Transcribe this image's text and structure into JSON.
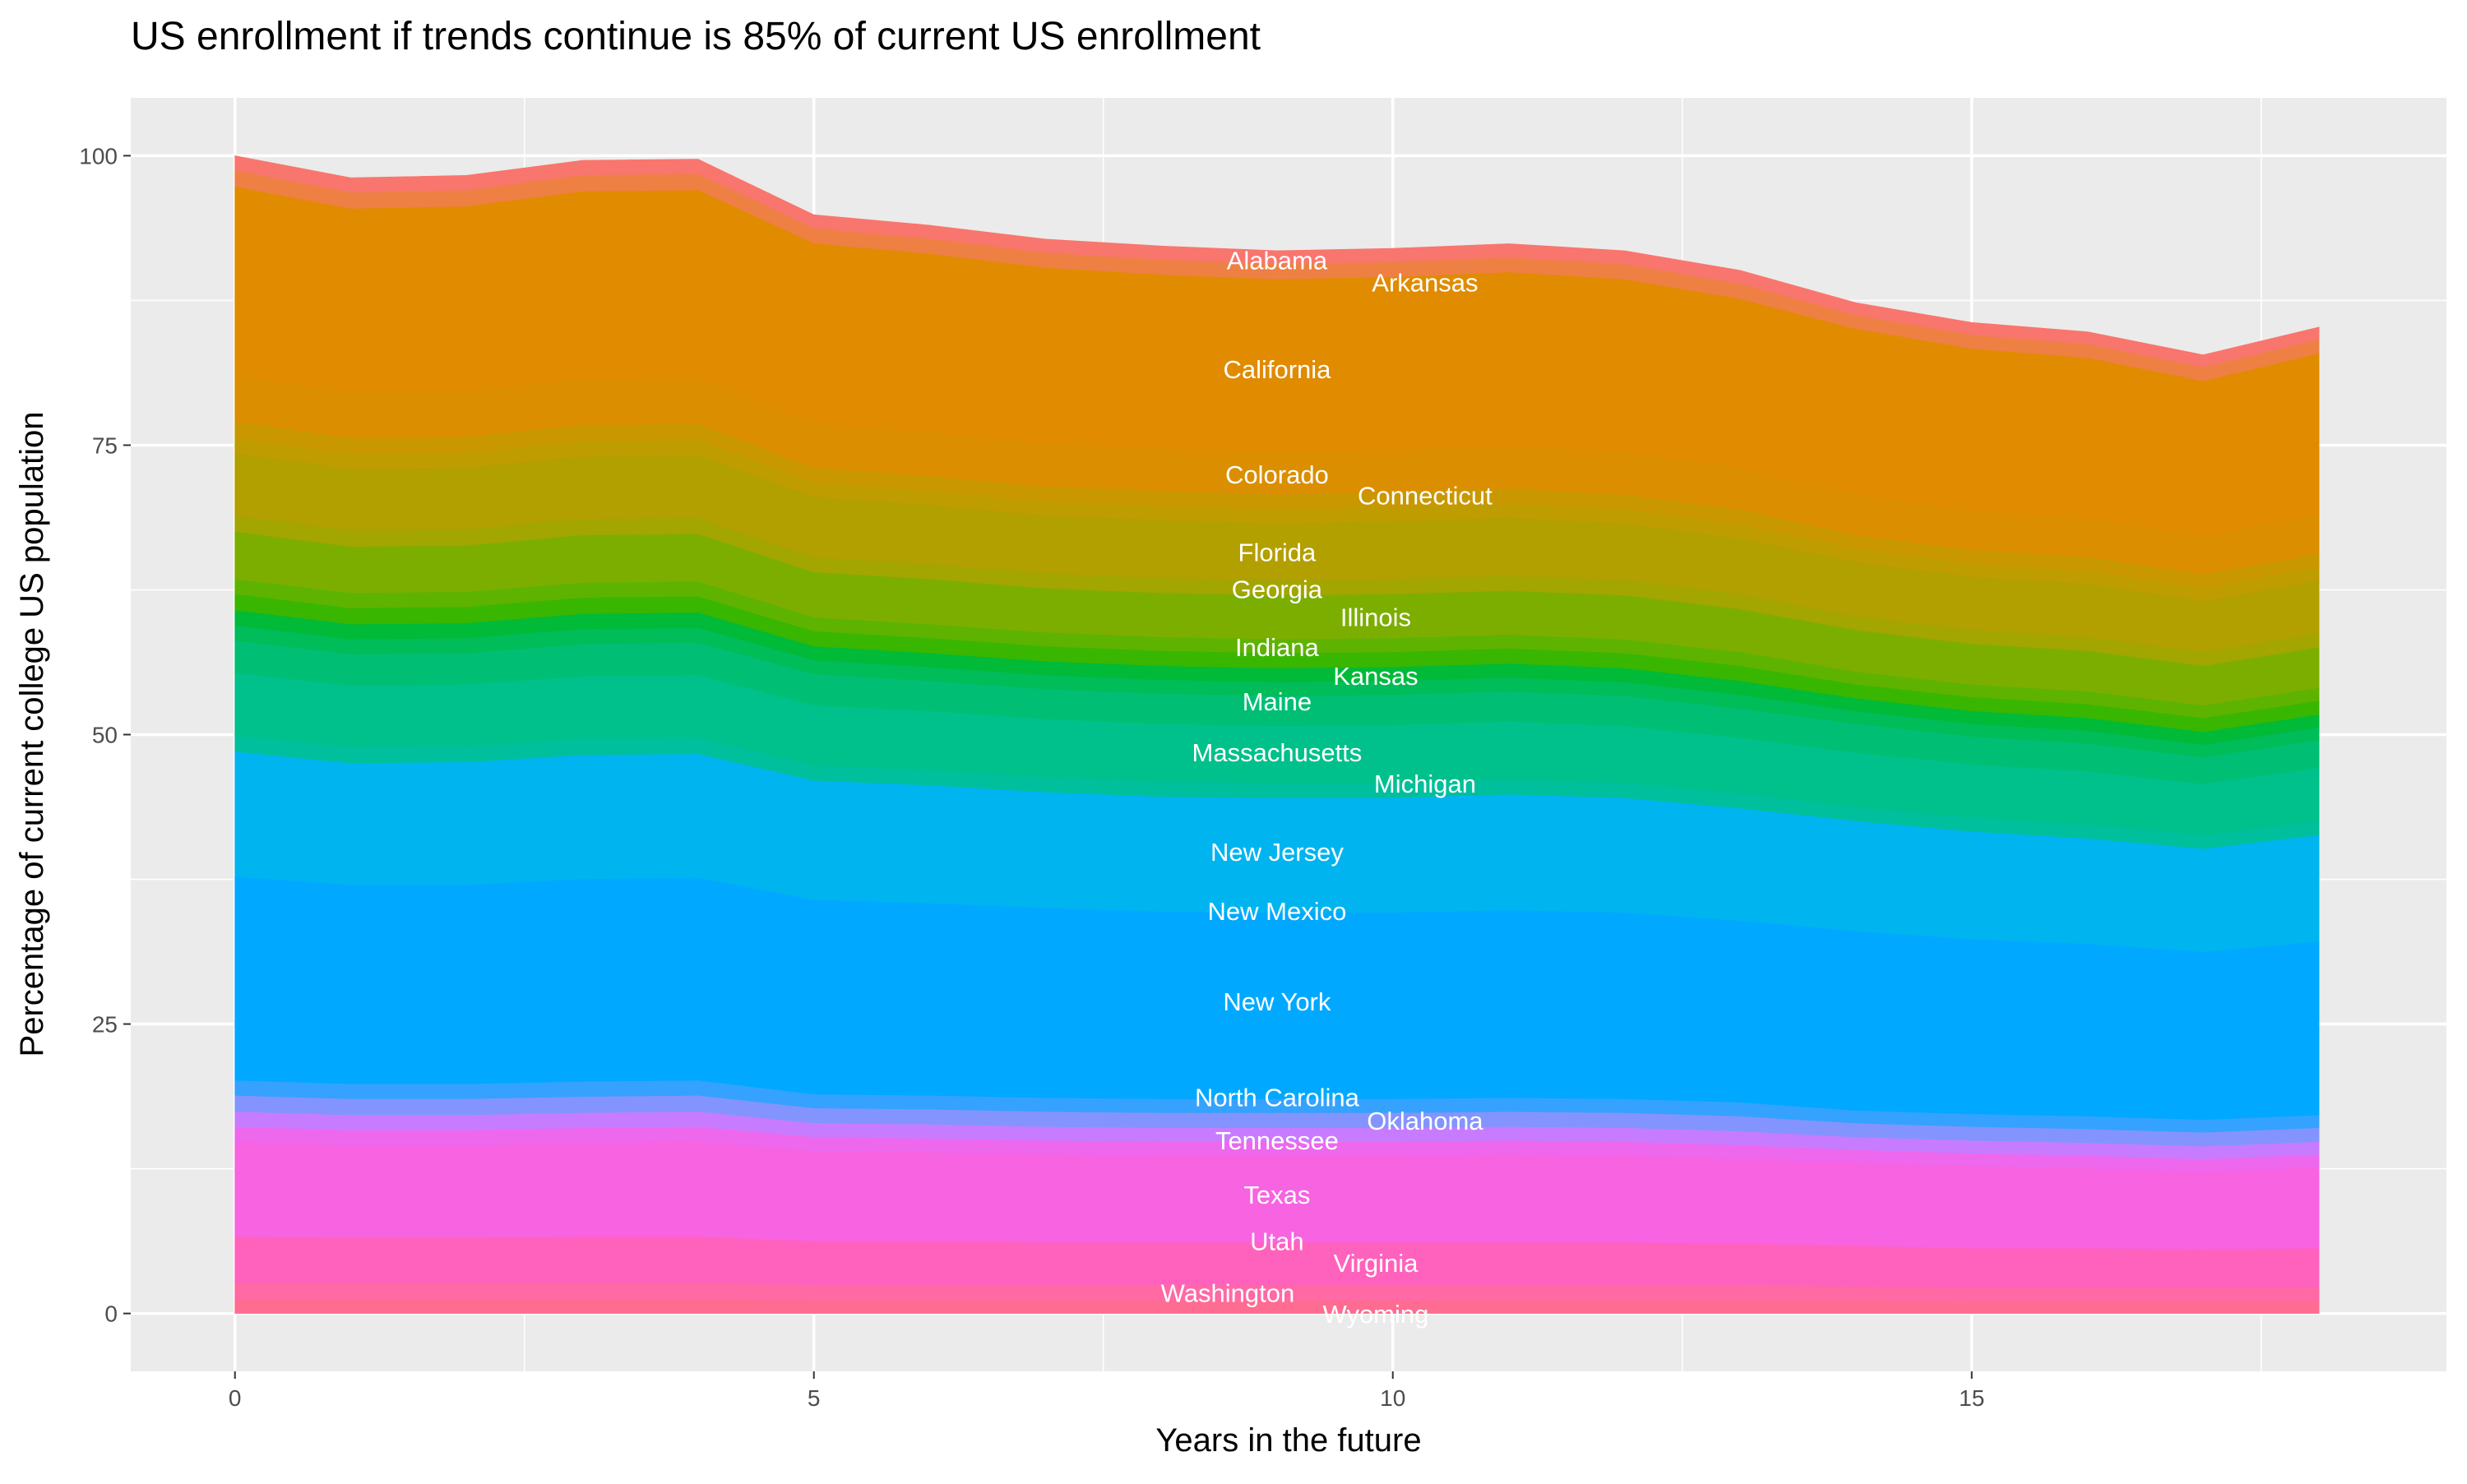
{
  "chart_data": {
    "type": "area",
    "stacked": true,
    "title": "US enrollment if trends continue is 85% of current US enrollment",
    "xlabel": "Years in the future",
    "ylabel": "Percentage of current college US population",
    "xlim": [
      -0.9,
      19.1
    ],
    "ylim": [
      -5,
      105
    ],
    "x_ticks": [
      0,
      5,
      10,
      15
    ],
    "y_ticks": [
      0,
      25,
      50,
      75,
      100
    ],
    "grid": true,
    "panel_background": "#EBEBEB",
    "x": [
      0,
      1,
      2,
      3,
      4,
      5,
      6,
      7,
      8,
      9,
      10,
      11,
      12,
      13,
      14,
      15,
      16,
      17,
      18
    ],
    "series": [
      {
        "color": "#F8766D",
        "values": [
          1.3,
          1.3,
          1.3,
          1.3,
          1.3,
          1.2,
          1.2,
          1.2,
          1.2,
          1.2,
          1.2,
          1.2,
          1.2,
          1.2,
          1.1,
          1.1,
          1.1,
          1.1,
          1.1
        ]
      },
      {
        "color": "#EE8044",
        "values": [
          1.4,
          1.4,
          1.4,
          1.4,
          1.4,
          1.3,
          1.3,
          1.3,
          1.3,
          1.3,
          1.3,
          1.3,
          1.3,
          1.3,
          1.2,
          1.2,
          1.2,
          1.2,
          1.2
        ]
      },
      {
        "color": "#E08B00",
        "values": [
          16.3,
          15.9,
          16.0,
          16.2,
          16.2,
          15.6,
          15.4,
          15.2,
          15.0,
          14.9,
          14.9,
          15.0,
          14.9,
          14.6,
          14.3,
          14.0,
          13.8,
          13.4,
          13.9
        ]
      },
      {
        "color": "#DB8E00",
        "values": [
          4.0,
          3.9,
          3.9,
          4.0,
          4.0,
          3.8,
          3.8,
          3.7,
          3.7,
          3.7,
          3.7,
          3.7,
          3.7,
          3.6,
          3.5,
          3.4,
          3.4,
          3.3,
          3.4
        ]
      },
      {
        "color": "#C99800",
        "values": [
          1.4,
          1.4,
          1.4,
          1.4,
          1.4,
          1.3,
          1.3,
          1.3,
          1.3,
          1.3,
          1.3,
          1.3,
          1.3,
          1.3,
          1.2,
          1.2,
          1.2,
          1.2,
          1.2
        ]
      },
      {
        "color": "#BF9C00",
        "values": [
          1.3,
          1.3,
          1.3,
          1.3,
          1.3,
          1.2,
          1.2,
          1.2,
          1.2,
          1.2,
          1.2,
          1.2,
          1.2,
          1.2,
          1.1,
          1.1,
          1.1,
          1.1,
          1.1
        ]
      },
      {
        "color": "#B29F00",
        "values": [
          5.4,
          5.3,
          5.3,
          5.4,
          5.4,
          5.2,
          5.1,
          5.0,
          5.0,
          4.9,
          5.0,
          5.0,
          4.9,
          4.8,
          4.7,
          4.6,
          4.6,
          4.4,
          4.6
        ]
      },
      {
        "color": "#A3A500",
        "values": [
          1.4,
          1.4,
          1.4,
          1.4,
          1.4,
          1.3,
          1.3,
          1.3,
          1.3,
          1.3,
          1.3,
          1.3,
          1.3,
          1.3,
          1.2,
          1.2,
          1.2,
          1.2,
          1.2
        ]
      },
      {
        "color": "#7CAE00",
        "values": [
          4.1,
          4.0,
          4.0,
          4.1,
          4.1,
          3.9,
          3.9,
          3.8,
          3.8,
          3.8,
          3.8,
          3.8,
          3.8,
          3.7,
          3.6,
          3.5,
          3.5,
          3.4,
          3.5
        ]
      },
      {
        "color": "#5EB300",
        "values": [
          1.3,
          1.3,
          1.3,
          1.3,
          1.3,
          1.2,
          1.2,
          1.2,
          1.2,
          1.2,
          1.2,
          1.2,
          1.2,
          1.2,
          1.1,
          1.1,
          1.1,
          1.1,
          1.1
        ]
      },
      {
        "color": "#39B600",
        "values": [
          1.4,
          1.4,
          1.4,
          1.4,
          1.4,
          1.3,
          1.3,
          1.3,
          1.3,
          1.3,
          1.3,
          1.3,
          1.3,
          1.3,
          1.2,
          1.2,
          1.2,
          1.2,
          1.2
        ]
      },
      {
        "color": "#00BA38",
        "values": [
          1.3,
          1.3,
          1.3,
          1.3,
          1.3,
          1.2,
          1.2,
          1.2,
          1.2,
          1.2,
          1.2,
          1.2,
          1.2,
          1.2,
          1.1,
          1.1,
          1.1,
          1.1,
          1.1
        ]
      },
      {
        "color": "#00BC59",
        "values": [
          1.3,
          1.3,
          1.3,
          1.3,
          1.3,
          1.2,
          1.2,
          1.2,
          1.2,
          1.2,
          1.2,
          1.2,
          1.2,
          1.2,
          1.1,
          1.1,
          1.1,
          1.1,
          1.1
        ]
      },
      {
        "color": "#00BF74",
        "values": [
          2.8,
          2.7,
          2.7,
          2.8,
          2.8,
          2.7,
          2.6,
          2.6,
          2.6,
          2.6,
          2.6,
          2.6,
          2.6,
          2.5,
          2.5,
          2.4,
          2.4,
          2.3,
          2.4
        ]
      },
      {
        "color": "#00C08B",
        "values": [
          5.4,
          5.3,
          5.3,
          5.4,
          5.4,
          5.2,
          5.1,
          5.0,
          5.0,
          4.9,
          5.0,
          5.0,
          4.9,
          4.8,
          4.7,
          4.6,
          4.6,
          4.4,
          4.6
        ]
      },
      {
        "color": "#00BF9C",
        "values": [
          1.4,
          1.4,
          1.4,
          1.4,
          1.4,
          1.3,
          1.3,
          1.3,
          1.3,
          1.3,
          1.3,
          1.3,
          1.3,
          1.3,
          1.2,
          1.2,
          1.2,
          1.2,
          1.2
        ]
      },
      {
        "color": "#00B4F0",
        "values": [
          10.8,
          10.5,
          10.6,
          10.7,
          10.7,
          10.3,
          10.2,
          10.0,
          9.9,
          9.9,
          9.9,
          10.0,
          9.9,
          9.7,
          9.5,
          9.3,
          9.1,
          8.9,
          9.2
        ]
      },
      {
        "color": "#00A9FF",
        "values": [
          17.6,
          17.2,
          17.2,
          17.5,
          17.5,
          16.8,
          16.6,
          16.4,
          16.2,
          16.1,
          16.1,
          16.2,
          16.1,
          15.7,
          15.5,
          15.1,
          14.9,
          14.5,
          15.0
        ]
      },
      {
        "color": "#35A2FF",
        "values": [
          1.3,
          1.3,
          1.3,
          1.3,
          1.3,
          1.2,
          1.2,
          1.2,
          1.2,
          1.2,
          1.2,
          1.2,
          1.2,
          1.2,
          1.1,
          1.1,
          1.1,
          1.1,
          1.1
        ]
      },
      {
        "color": "#8494FF",
        "values": [
          1.4,
          1.4,
          1.4,
          1.4,
          1.4,
          1.3,
          1.3,
          1.3,
          1.3,
          1.3,
          1.3,
          1.3,
          1.3,
          1.3,
          1.2,
          1.2,
          1.2,
          1.2,
          1.2
        ]
      },
      {
        "color": "#C77CFF",
        "values": [
          1.3,
          1.3,
          1.3,
          1.3,
          1.3,
          1.2,
          1.2,
          1.2,
          1.2,
          1.2,
          1.2,
          1.2,
          1.2,
          1.2,
          1.1,
          1.1,
          1.1,
          1.1,
          1.1
        ]
      },
      {
        "color": "#ED68ED",
        "values": [
          1.3,
          1.3,
          1.3,
          1.3,
          1.3,
          1.2,
          1.2,
          1.2,
          1.2,
          1.2,
          1.2,
          1.2,
          1.2,
          1.2,
          1.1,
          1.1,
          1.1,
          1.1,
          1.1
        ]
      },
      {
        "color": "#F763E0",
        "values": [
          8.2,
          8.0,
          8.0,
          8.1,
          8.2,
          7.8,
          7.7,
          7.6,
          7.5,
          7.5,
          7.5,
          7.6,
          7.5,
          7.3,
          7.2,
          7.1,
          6.9,
          6.7,
          7.0
        ]
      },
      {
        "color": "#FF62BC",
        "values": [
          4.0,
          3.9,
          3.9,
          4.0,
          4.0,
          3.8,
          3.8,
          3.7,
          3.7,
          3.7,
          3.7,
          3.7,
          3.7,
          3.6,
          3.5,
          3.4,
          3.4,
          3.3,
          3.4
        ]
      },
      {
        "color": "#FF69A4",
        "values": [
          1.4,
          1.4,
          1.4,
          1.4,
          1.4,
          1.3,
          1.3,
          1.3,
          1.3,
          1.3,
          1.3,
          1.3,
          1.3,
          1.3,
          1.2,
          1.2,
          1.2,
          1.2,
          1.2
        ]
      },
      {
        "color": "#FF6C91",
        "values": [
          1.2,
          1.2,
          1.2,
          1.2,
          1.2,
          1.1,
          1.1,
          1.1,
          1.1,
          1.1,
          1.1,
          1.1,
          1.1,
          1.1,
          1.1,
          1.0,
          1.0,
          1.0,
          1.0
        ]
      }
    ],
    "annotations": {
      "x": 9,
      "color": "#FFFFFF",
      "labels": [
        {
          "text": "Alabama",
          "y": 90.9
        },
        {
          "text": "Arkansas",
          "y": 89.0
        },
        {
          "text": "California",
          "y": 81.5
        },
        {
          "text": "Colorado",
          "y": 72.4
        },
        {
          "text": "Connecticut",
          "y": 70.6
        },
        {
          "text": "Florida",
          "y": 65.7
        },
        {
          "text": "Georgia",
          "y": 62.5
        },
        {
          "text": "Illinois",
          "y": 60.1
        },
        {
          "text": "Indiana",
          "y": 57.5
        },
        {
          "text": "Kansas",
          "y": 55.0
        },
        {
          "text": "Maine",
          "y": 52.8
        },
        {
          "text": "Massachusetts",
          "y": 48.4
        },
        {
          "text": "Michigan",
          "y": 45.7
        },
        {
          "text": "New Jersey",
          "y": 39.8
        },
        {
          "text": "New Mexico",
          "y": 34.7
        },
        {
          "text": "New York",
          "y": 26.9
        },
        {
          "text": "North Carolina",
          "y": 18.6
        },
        {
          "text": "Oklahoma",
          "y": 16.6
        },
        {
          "text": "Tennessee",
          "y": 14.9
        },
        {
          "text": "Texas",
          "y": 10.2
        },
        {
          "text": "Utah",
          "y": 6.2
        },
        {
          "text": "Virginia",
          "y": 4.3
        },
        {
          "text": "Washington",
          "y": 1.7
        },
        {
          "text": "Wyoming",
          "y": -0.1
        }
      ]
    }
  }
}
